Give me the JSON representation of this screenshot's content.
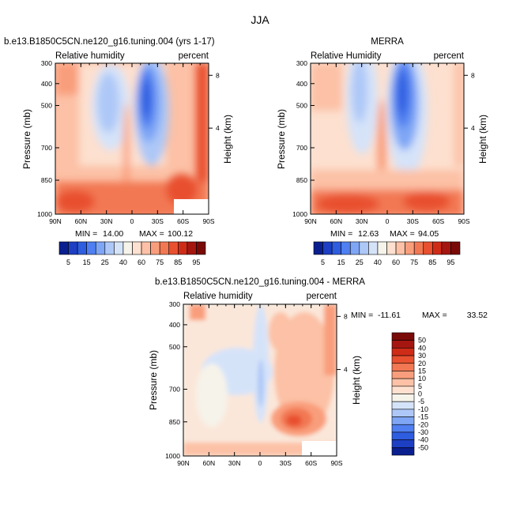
{
  "figure": {
    "title": "JJA"
  },
  "chart_data": [
    {
      "type": "heatmap",
      "title": "b.e13.B1850C5CN.ne120_g16.tuning.004 (yrs 1-17)",
      "left_label": "Relative humidity",
      "right_label": "percent",
      "ylabel": "Pressure (mb)",
      "y2label": "Height (km)",
      "x_ticks": [
        "90N",
        "60N",
        "30N",
        "0",
        "30S",
        "60S",
        "90S"
      ],
      "y_ticks": [
        "300",
        "400",
        "500",
        "700",
        "850",
        "1000"
      ],
      "y2_ticks": [
        "8",
        "4"
      ],
      "min_label": "MIN =",
      "min_value": "14.00",
      "max_label": "MAX =",
      "max_value": "100.12",
      "colorbar_labels": [
        "5",
        "15",
        "25",
        "40",
        "60",
        "75",
        "85",
        "95"
      ]
    },
    {
      "type": "heatmap",
      "title": "MERRA",
      "left_label": "Relative Humidity",
      "right_label": "percent",
      "ylabel": "Pressure (mb)",
      "y2label": "Height (km)",
      "x_ticks": [
        "90N",
        "60N",
        "30N",
        "0",
        "30S",
        "60S",
        "90S"
      ],
      "y_ticks": [
        "300",
        "400",
        "500",
        "700",
        "850",
        "1000"
      ],
      "y2_ticks": [
        "8",
        "4"
      ],
      "min_label": "MIN =",
      "min_value": "12.63",
      "max_label": "MAX =",
      "max_value": "94.05",
      "colorbar_labels": [
        "5",
        "15",
        "25",
        "40",
        "60",
        "75",
        "85",
        "95"
      ]
    },
    {
      "type": "heatmap",
      "title": "b.e13.B1850C5CN.ne120_g16.tuning.004 - MERRA",
      "left_label": "Relative humidity",
      "right_label": "percent",
      "ylabel": "Pressure (mb)",
      "y2label": "Height (km)",
      "x_ticks": [
        "90N",
        "60N",
        "30N",
        "0",
        "30S",
        "60S",
        "90S"
      ],
      "y_ticks": [
        "300",
        "400",
        "500",
        "700",
        "850",
        "1000"
      ],
      "y2_ticks": [
        "8",
        "4"
      ],
      "min_label": "MIN =",
      "min_value": "-11.61",
      "max_label": "MAX =",
      "max_value": "33.52",
      "colorbar_labels": [
        "50",
        "40",
        "30",
        "20",
        "15",
        "10",
        "5",
        "0",
        "-5",
        "-10",
        "-15",
        "-20",
        "-30",
        "-40",
        "-50"
      ]
    }
  ],
  "palettes": {
    "abs": [
      "#0a1f8f",
      "#1d3fc4",
      "#2f5de0",
      "#4f7ff0",
      "#7ea6f5",
      "#adc8f7",
      "#d5e3f9",
      "#f6f3ea",
      "#fde0cf",
      "#fcc1a6",
      "#f99e7c",
      "#f27853",
      "#e8502f",
      "#cf2c18",
      "#a61610",
      "#7a0a08"
    ],
    "diff": [
      "#7a0a08",
      "#a61610",
      "#cf2c18",
      "#e8502f",
      "#f27853",
      "#f99e7c",
      "#fcc1a6",
      "#fde0cf",
      "#f6f3ea",
      "#d5e3f9",
      "#adc8f7",
      "#7ea6f5",
      "#4f7ff0",
      "#2f5de0",
      "#1d3fc4",
      "#0a1f8f"
    ]
  }
}
